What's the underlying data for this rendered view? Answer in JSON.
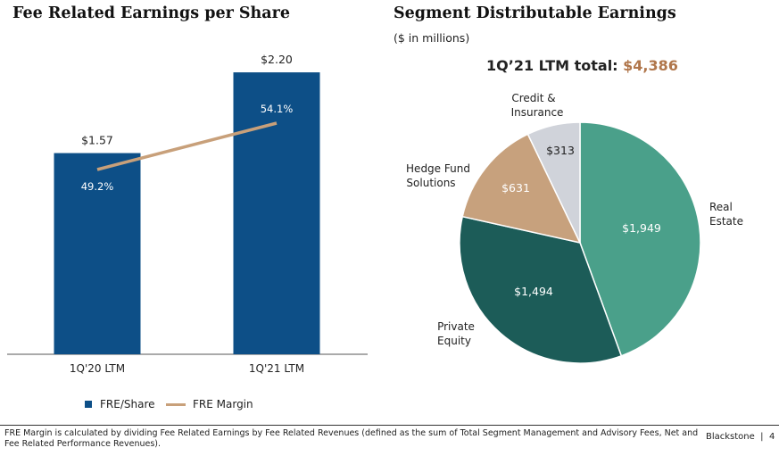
{
  "left_title": "Fee Related Earnings per Share",
  "right_title": "Segment Distributable Earnings",
  "right_subtitle": "($ in millions)",
  "pie_total_label": "1Q’21 LTM total:",
  "pie_total_value": "$4,386",
  "legend": {
    "bar_label": "FRE/Share",
    "line_label": "FRE Margin"
  },
  "footnote": "FRE Margin is calculated by dividing Fee Related Earnings by Fee Related Revenues (defined as the sum of Total Segment Management and Advisory Fees, Net and Fee Related Performance Revenues).",
  "brand": "Blackstone",
  "page_number": "4",
  "colors": {
    "bar": "#0d4f87",
    "margin_line": "#c8a07a",
    "real_estate": "#4aa08a",
    "private_equity": "#1c5c58",
    "hedge_fund": "#c7a17d",
    "credit": "#d0d3da",
    "accent_total": "#b0764b"
  },
  "chart_data": [
    {
      "type": "bar",
      "title": "Fee Related Earnings per Share",
      "categories": [
        "1Q'20 LTM",
        "1Q'21 LTM"
      ],
      "series": [
        {
          "name": "FRE/Share",
          "values": [
            1.57,
            2.2
          ],
          "labels": [
            "$1.57",
            "$2.20"
          ]
        },
        {
          "name": "FRE Margin",
          "type": "line",
          "values": [
            49.2,
            54.1
          ],
          "labels": [
            "49.2%",
            "54.1%"
          ]
        }
      ]
    },
    {
      "type": "pie",
      "title": "Segment Distributable Earnings",
      "subtitle": "($ in millions)",
      "total_label": "1Q’21 LTM total: $4,386",
      "slices": [
        {
          "name": "Real Estate",
          "value": 1949,
          "label": "$1,949",
          "color": "#4aa08a"
        },
        {
          "name": "Private Equity",
          "value": 1494,
          "label": "$1,494",
          "color": "#1c5c58"
        },
        {
          "name": "Hedge Fund Solutions",
          "value": 631,
          "label": "$631",
          "color": "#c7a17d"
        },
        {
          "name": "Credit & Insurance",
          "value": 313,
          "label": "$313",
          "color": "#d0d3da"
        }
      ]
    }
  ]
}
